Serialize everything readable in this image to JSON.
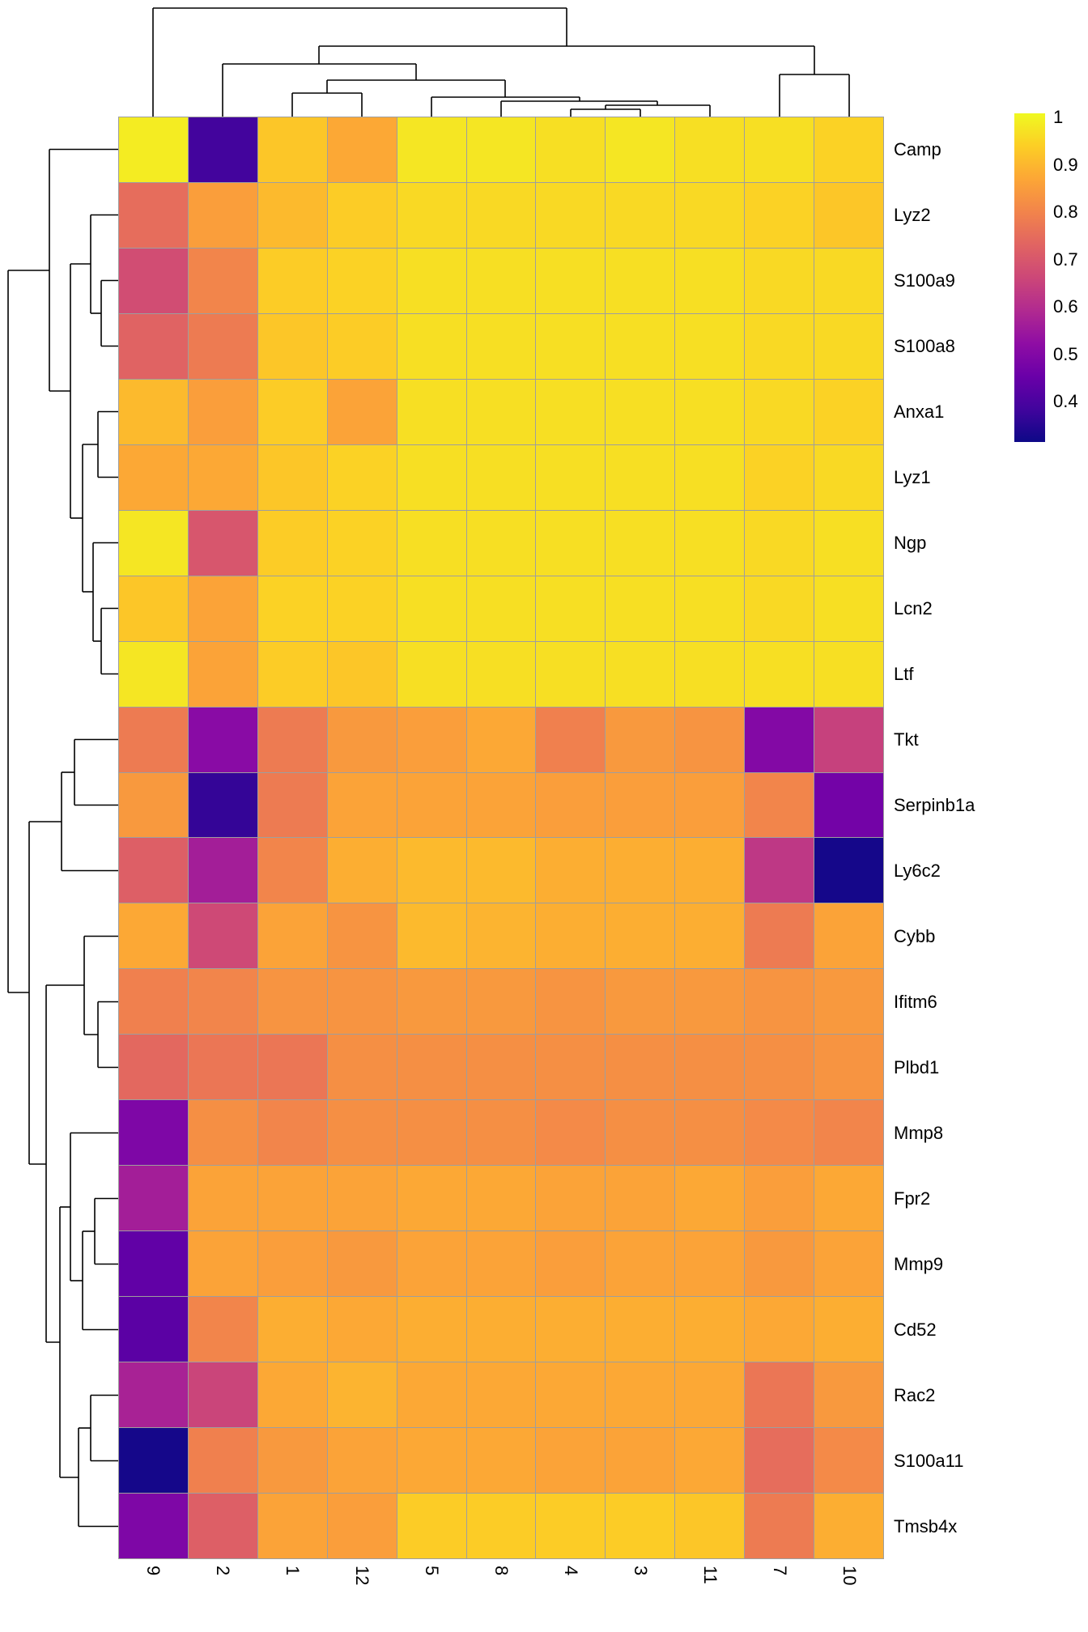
{
  "chart_data": {
    "type": "heatmap",
    "description": "Clustered gene-expression correlation heatmap with row and column dendrograms",
    "columns": [
      "9",
      "2",
      "1",
      "12",
      "5",
      "8",
      "4",
      "3",
      "11",
      "7",
      "10"
    ],
    "rows": [
      "Camp",
      "Lyz2",
      "S100a9",
      "S100a8",
      "Anxa1",
      "Lyz1",
      "Ngp",
      "Lcn2",
      "Ltf",
      "Tkt",
      "Serpinb1a",
      "Ly6c2",
      "Cybb",
      "Ifitm6",
      "Plbd1",
      "Mmp8",
      "Fpr2",
      "Mmp9",
      "Cd52",
      "Rac2",
      "S100a11",
      "Tmsb4x"
    ],
    "values": [
      [
        0.98,
        0.4,
        0.92,
        0.87,
        0.97,
        0.97,
        0.96,
        0.97,
        0.96,
        0.96,
        0.94
      ],
      [
        0.75,
        0.85,
        0.9,
        0.93,
        0.95,
        0.95,
        0.95,
        0.95,
        0.95,
        0.94,
        0.92
      ],
      [
        0.68,
        0.8,
        0.93,
        0.94,
        0.96,
        0.96,
        0.96,
        0.96,
        0.96,
        0.95,
        0.95
      ],
      [
        0.73,
        0.78,
        0.92,
        0.93,
        0.96,
        0.96,
        0.96,
        0.96,
        0.96,
        0.95,
        0.95
      ],
      [
        0.9,
        0.85,
        0.93,
        0.86,
        0.96,
        0.96,
        0.96,
        0.96,
        0.96,
        0.95,
        0.94
      ],
      [
        0.87,
        0.87,
        0.92,
        0.94,
        0.96,
        0.96,
        0.96,
        0.96,
        0.96,
        0.94,
        0.95
      ],
      [
        0.97,
        0.7,
        0.93,
        0.94,
        0.96,
        0.96,
        0.96,
        0.96,
        0.96,
        0.95,
        0.96
      ],
      [
        0.92,
        0.86,
        0.94,
        0.94,
        0.96,
        0.96,
        0.96,
        0.96,
        0.96,
        0.95,
        0.96
      ],
      [
        0.97,
        0.86,
        0.93,
        0.92,
        0.96,
        0.96,
        0.96,
        0.96,
        0.96,
        0.96,
        0.96
      ],
      [
        0.78,
        0.52,
        0.78,
        0.84,
        0.85,
        0.87,
        0.79,
        0.84,
        0.83,
        0.51,
        0.65
      ],
      [
        0.84,
        0.38,
        0.78,
        0.86,
        0.86,
        0.86,
        0.85,
        0.85,
        0.85,
        0.8,
        0.48
      ],
      [
        0.72,
        0.57,
        0.8,
        0.88,
        0.9,
        0.9,
        0.88,
        0.88,
        0.88,
        0.63,
        0.34
      ],
      [
        0.87,
        0.67,
        0.86,
        0.83,
        0.9,
        0.89,
        0.88,
        0.88,
        0.88,
        0.78,
        0.86
      ],
      [
        0.79,
        0.8,
        0.83,
        0.83,
        0.84,
        0.84,
        0.83,
        0.84,
        0.84,
        0.83,
        0.84
      ],
      [
        0.74,
        0.77,
        0.77,
        0.82,
        0.82,
        0.82,
        0.82,
        0.82,
        0.82,
        0.82,
        0.83
      ],
      [
        0.5,
        0.82,
        0.8,
        0.82,
        0.82,
        0.82,
        0.81,
        0.82,
        0.82,
        0.81,
        0.8
      ],
      [
        0.57,
        0.86,
        0.86,
        0.86,
        0.87,
        0.87,
        0.86,
        0.86,
        0.87,
        0.85,
        0.87
      ],
      [
        0.45,
        0.86,
        0.85,
        0.84,
        0.86,
        0.86,
        0.85,
        0.86,
        0.86,
        0.84,
        0.86
      ],
      [
        0.44,
        0.8,
        0.88,
        0.87,
        0.88,
        0.88,
        0.88,
        0.88,
        0.88,
        0.87,
        0.88
      ],
      [
        0.58,
        0.66,
        0.87,
        0.89,
        0.87,
        0.87,
        0.87,
        0.87,
        0.87,
        0.77,
        0.84
      ],
      [
        0.34,
        0.79,
        0.84,
        0.86,
        0.87,
        0.87,
        0.86,
        0.86,
        0.87,
        0.75,
        0.81
      ],
      [
        0.5,
        0.72,
        0.86,
        0.85,
        0.93,
        0.93,
        0.93,
        0.93,
        0.92,
        0.78,
        0.88
      ]
    ],
    "value_domain": [
      0.33,
      1.0
    ],
    "legend": {
      "ticks": [
        "1",
        "0.9",
        "0.8",
        "0.7",
        "0.6",
        "0.5",
        "0.4"
      ],
      "tick_values": [
        1,
        0.9,
        0.8,
        0.7,
        0.6,
        0.5,
        0.4
      ],
      "position": "right"
    },
    "colormap": {
      "name": "plasma",
      "anchors": [
        "#0d0887",
        "#41049d",
        "#6a00a8",
        "#8f0da4",
        "#b12a90",
        "#cc4778",
        "#e16462",
        "#f2844b",
        "#fca636",
        "#fcce25",
        "#f0f921"
      ]
    },
    "grid_color": "#9e9e9e",
    "dendrograms": {
      "top": {
        "segments": [
          [
            705,
            144,
            705,
            135
          ],
          [
            791,
            144,
            791,
            135
          ],
          [
            705,
            135,
            791,
            135
          ],
          [
            748,
            135,
            748,
            130
          ],
          [
            877,
            144,
            877,
            130
          ],
          [
            748,
            130,
            877,
            130
          ],
          [
            619,
            144,
            619,
            125
          ],
          [
            812,
            130,
            812,
            125
          ],
          [
            619,
            125,
            812,
            125
          ],
          [
            533,
            144,
            533,
            120
          ],
          [
            716,
            125,
            716,
            120
          ],
          [
            533,
            120,
            716,
            120
          ],
          [
            361,
            144,
            361,
            115
          ],
          [
            447,
            144,
            447,
            115
          ],
          [
            361,
            115,
            447,
            115
          ],
          [
            404,
            115,
            404,
            99
          ],
          [
            624,
            120,
            624,
            99
          ],
          [
            404,
            99,
            624,
            99
          ],
          [
            963,
            144,
            963,
            92
          ],
          [
            1049,
            144,
            1049,
            92
          ],
          [
            963,
            92,
            1049,
            92
          ],
          [
            275,
            144,
            275,
            79
          ],
          [
            514,
            99,
            514,
            79
          ],
          [
            275,
            79,
            514,
            79
          ],
          [
            394,
            79,
            394,
            57
          ],
          [
            1006,
            92,
            1006,
            57
          ],
          [
            394,
            57,
            1006,
            57
          ],
          [
            189,
            144,
            189,
            10
          ],
          [
            700,
            57,
            700,
            10
          ],
          [
            189,
            10,
            700,
            10
          ]
        ]
      },
      "left": {
        "segments": [
          [
            146,
            346.5,
            125,
            346.5
          ],
          [
            146,
            427.5,
            125,
            427.5
          ],
          [
            125,
            346.5,
            125,
            427.5
          ],
          [
            146,
            265.5,
            112,
            265.5
          ],
          [
            125,
            387,
            112,
            387
          ],
          [
            112,
            265.5,
            112,
            387
          ],
          [
            146,
            751.5,
            125,
            751.5
          ],
          [
            146,
            832.5,
            125,
            832.5
          ],
          [
            125,
            751.5,
            125,
            832.5
          ],
          [
            146,
            670.5,
            115,
            670.5
          ],
          [
            125,
            792,
            115,
            792
          ],
          [
            115,
            670.5,
            115,
            792
          ],
          [
            146,
            508.5,
            121,
            508.5
          ],
          [
            146,
            589.5,
            121,
            589.5
          ],
          [
            121,
            508.5,
            121,
            589.5
          ],
          [
            121,
            549,
            102,
            549
          ],
          [
            115,
            731,
            102,
            731
          ],
          [
            102,
            549,
            102,
            731
          ],
          [
            112,
            326,
            87,
            326
          ],
          [
            102,
            640,
            87,
            640
          ],
          [
            87,
            326,
            87,
            640
          ],
          [
            146,
            184.5,
            61,
            184.5
          ],
          [
            87,
            483,
            61,
            483
          ],
          [
            61,
            184.5,
            61,
            483
          ],
          [
            146,
            913.5,
            92,
            913.5
          ],
          [
            146,
            994.5,
            92,
            994.5
          ],
          [
            92,
            913.5,
            92,
            994.5
          ],
          [
            92,
            954,
            76,
            954
          ],
          [
            146,
            1075.5,
            76,
            1075.5
          ],
          [
            76,
            954,
            76,
            1075.5
          ],
          [
            146,
            1237.5,
            121,
            1237.5
          ],
          [
            146,
            1318.5,
            121,
            1318.5
          ],
          [
            121,
            1237.5,
            121,
            1318.5
          ],
          [
            146,
            1156.5,
            104,
            1156.5
          ],
          [
            121,
            1278,
            104,
            1278
          ],
          [
            104,
            1156.5,
            104,
            1278
          ],
          [
            146,
            1480.5,
            117,
            1480.5
          ],
          [
            146,
            1561.5,
            117,
            1561.5
          ],
          [
            117,
            1480.5,
            117,
            1561.5
          ],
          [
            117,
            1521,
            102,
            1521
          ],
          [
            146,
            1642.5,
            102,
            1642.5
          ],
          [
            102,
            1521,
            102,
            1642.5
          ],
          [
            146,
            1399.5,
            87,
            1399.5
          ],
          [
            102,
            1582,
            87,
            1582
          ],
          [
            87,
            1399.5,
            87,
            1582
          ],
          [
            146,
            1723.5,
            112,
            1723.5
          ],
          [
            146,
            1804.5,
            112,
            1804.5
          ],
          [
            112,
            1723.5,
            112,
            1804.5
          ],
          [
            112,
            1764,
            97,
            1764
          ],
          [
            146,
            1885.5,
            97,
            1885.5
          ],
          [
            97,
            1764,
            97,
            1885.5
          ],
          [
            87,
            1491,
            74,
            1491
          ],
          [
            97,
            1825,
            74,
            1825
          ],
          [
            74,
            1491,
            74,
            1825
          ],
          [
            104,
            1217,
            57,
            1217
          ],
          [
            74,
            1658,
            57,
            1658
          ],
          [
            57,
            1217,
            57,
            1658
          ],
          [
            76,
            1015,
            36,
            1015
          ],
          [
            57,
            1438,
            36,
            1438
          ],
          [
            36,
            1015,
            36,
            1438
          ],
          [
            61,
            334,
            10,
            334
          ],
          [
            36,
            1226,
            10,
            1226
          ],
          [
            10,
            334,
            10,
            1226
          ]
        ]
      }
    }
  }
}
